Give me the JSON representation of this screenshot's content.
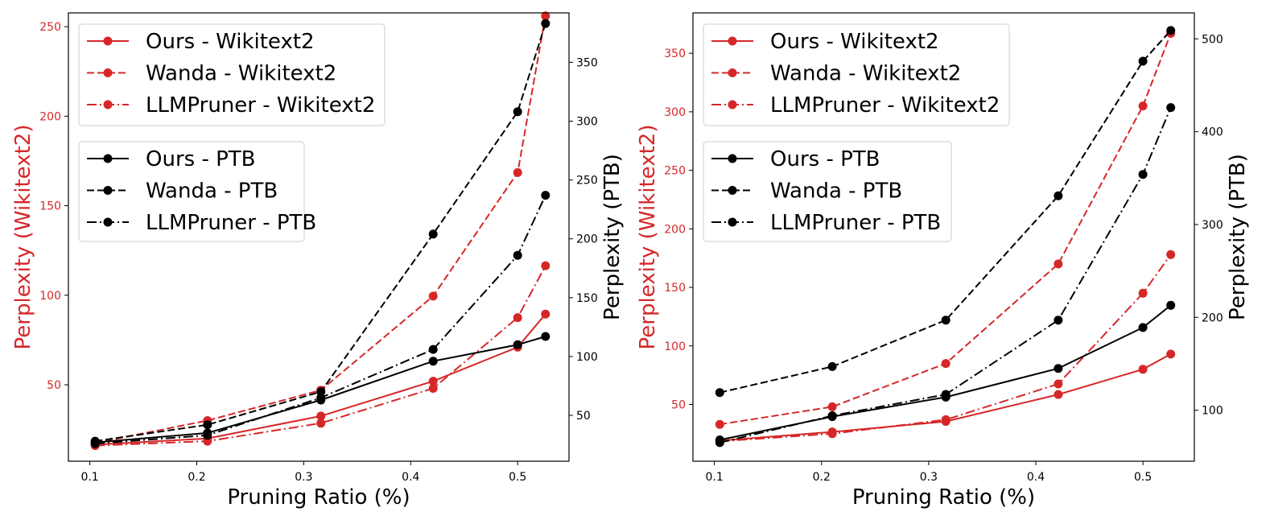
{
  "colors": {
    "red": "#d62728",
    "black": "#000000"
  },
  "chart_data": [
    {
      "type": "line",
      "title": "",
      "xlabel": "Pruning Ratio (%)",
      "ylabel_left": "Perplexity (Wikitext2)",
      "ylabel_right": "Perplexity (PTB)",
      "x": [
        0.105,
        0.21,
        0.316,
        0.421,
        0.5,
        0.526
      ],
      "xlim": [
        0.08,
        0.548
      ],
      "xticks": [
        0.1,
        0.2,
        0.3,
        0.4,
        0.5
      ],
      "ylim_left": [
        7.3,
        257.7
      ],
      "yticks_left": [
        50,
        100,
        150,
        200,
        250
      ],
      "ylim_right": [
        11,
        392
      ],
      "yticks_right": [
        50,
        100,
        150,
        200,
        250,
        300,
        350
      ],
      "legend_left": [
        {
          "label": "Ours - Wikitext2",
          "style": "solid"
        },
        {
          "label": "Wanda - Wikitext2",
          "style": "dashed"
        },
        {
          "label": "LLMPruner - Wikitext2",
          "style": "dashdot"
        }
      ],
      "legend_right": [
        {
          "label": "Ours - PTB",
          "style": "solid"
        },
        {
          "label": "Wanda - PTB",
          "style": "dashed"
        },
        {
          "label": "LLMPruner - PTB",
          "style": "dashdot"
        }
      ],
      "series": [
        {
          "name": "Ours - Wikitext2",
          "axis": "left",
          "style": "solid",
          "color": "red",
          "values": [
            16.5,
            20,
            32.5,
            52,
            71,
            89.5
          ]
        },
        {
          "name": "Wanda - Wikitext2",
          "axis": "left",
          "style": "dashed",
          "color": "red",
          "values": [
            17.5,
            30,
            47,
            99.5,
            168.5,
            256
          ]
        },
        {
          "name": "LLMPruner - Wikitext2",
          "axis": "left",
          "style": "dashdot",
          "color": "red",
          "values": [
            16,
            18.5,
            28.5,
            48,
            87.5,
            116.5
          ]
        },
        {
          "name": "Ours - PTB",
          "axis": "right",
          "style": "solid",
          "color": "black",
          "values": [
            27,
            35,
            63,
            96,
            110,
            117
          ]
        },
        {
          "name": "Wanda - PTB",
          "axis": "right",
          "style": "dashed",
          "color": "black",
          "values": [
            28,
            42,
            70,
            204,
            308,
            383
          ]
        },
        {
          "name": "LLMPruner - PTB",
          "axis": "right",
          "style": "dashdot",
          "color": "black",
          "values": [
            26,
            33,
            65,
            106,
            186,
            237
          ]
        }
      ]
    },
    {
      "type": "line",
      "title": "",
      "xlabel": "Pruning Ratio (%)",
      "ylabel_left": "Perplexity (Wikitext2)",
      "ylabel_right": "Perplexity (PTB)",
      "x": [
        0.105,
        0.21,
        0.316,
        0.421,
        0.5,
        0.526
      ],
      "xlim": [
        0.08,
        0.548
      ],
      "xticks": [
        0.1,
        0.2,
        0.3,
        0.4,
        0.5
      ],
      "ylim_left": [
        1.5,
        384.5
      ],
      "yticks_left": [
        50,
        100,
        150,
        200,
        250,
        300,
        350
      ],
      "ylim_right": [
        45,
        528
      ],
      "yticks_right": [
        100,
        200,
        300,
        400,
        500
      ],
      "legend_left": [
        {
          "label": "Ours - Wikitext2",
          "style": "solid"
        },
        {
          "label": "Wanda - Wikitext2",
          "style": "dashed"
        },
        {
          "label": "LLMPruner - Wikitext2",
          "style": "dashdot"
        }
      ],
      "legend_right": [
        {
          "label": "Ours - PTB",
          "style": "solid"
        },
        {
          "label": "Wanda - PTB",
          "style": "dashed"
        },
        {
          "label": "LLMPruner - PTB",
          "style": "dashdot"
        }
      ],
      "series": [
        {
          "name": "Ours - Wikitext2",
          "axis": "left",
          "style": "solid",
          "color": "red",
          "values": [
            19,
            26.5,
            35.5,
            58.5,
            80,
            93
          ]
        },
        {
          "name": "Wanda - Wikitext2",
          "axis": "left",
          "style": "dashed",
          "color": "red",
          "values": [
            33,
            48,
            85,
            170,
            305,
            367
          ]
        },
        {
          "name": "LLMPruner - Wikitext2",
          "axis": "left",
          "style": "dashdot",
          "color": "red",
          "values": [
            18.5,
            25,
            37,
            67.5,
            145,
            178
          ]
        },
        {
          "name": "Ours - PTB",
          "axis": "right",
          "style": "solid",
          "color": "black",
          "values": [
            68,
            93,
            114,
            145,
            189,
            213
          ]
        },
        {
          "name": "Wanda - PTB",
          "axis": "right",
          "style": "dashed",
          "color": "black",
          "values": [
            119,
            147,
            197,
            331,
            476,
            509
          ]
        },
        {
          "name": "LLMPruner - PTB",
          "axis": "right",
          "style": "dashdot",
          "color": "black",
          "values": [
            65,
            94,
            117,
            197,
            354,
            426
          ]
        }
      ]
    }
  ]
}
